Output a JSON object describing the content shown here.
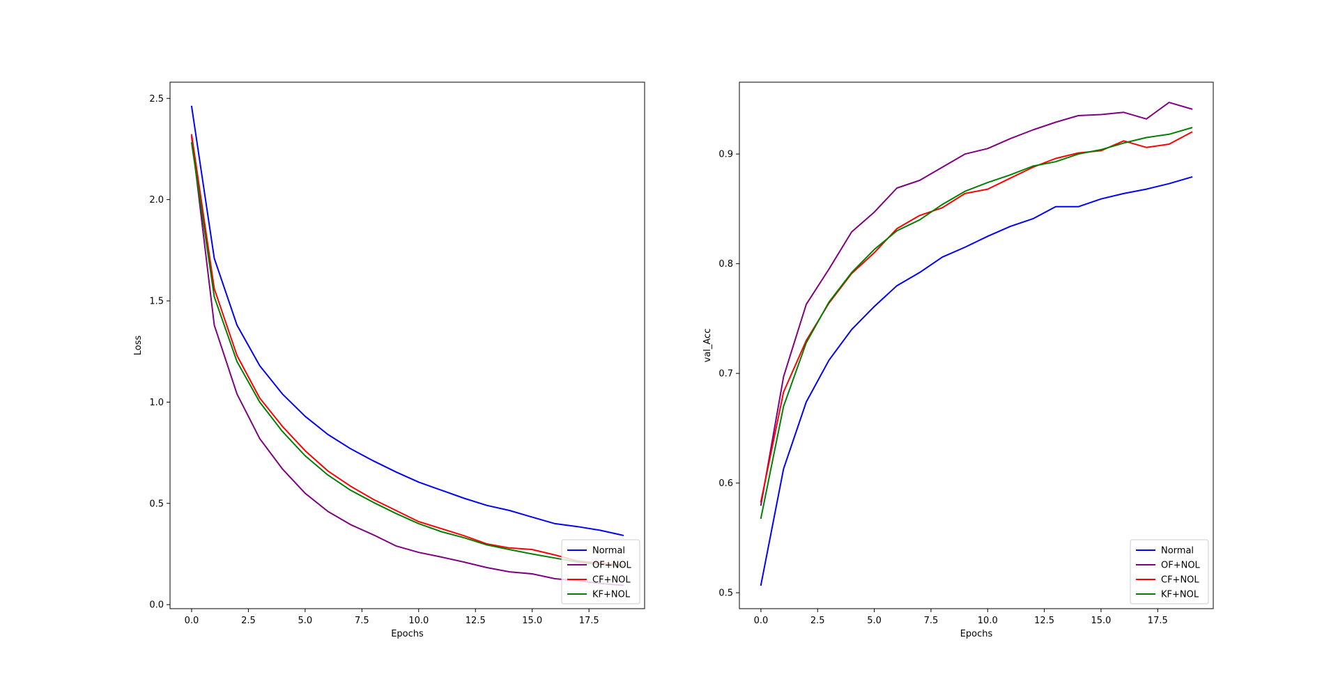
{
  "chart_data": [
    {
      "type": "line",
      "xlabel": "Epochs",
      "ylabel": "Loss",
      "xlim": [
        -0.95,
        19.95
      ],
      "ylim": [
        -0.02,
        2.58
      ],
      "xticks": [
        0.0,
        2.5,
        5.0,
        7.5,
        10.0,
        12.5,
        15.0,
        17.5
      ],
      "xtick_labels": [
        "0.0",
        "2.5",
        "5.0",
        "7.5",
        "10.0",
        "12.5",
        "15.0",
        "17.5"
      ],
      "yticks": [
        0.0,
        0.5,
        1.0,
        1.5,
        2.0,
        2.5
      ],
      "ytick_labels": [
        "0.0",
        "0.5",
        "1.0",
        "1.5",
        "2.0",
        "2.5"
      ],
      "grid": false,
      "legend_position": "lower-right",
      "x": [
        0,
        1,
        2,
        3,
        4,
        5,
        6,
        7,
        8,
        9,
        10,
        11,
        12,
        13,
        14,
        15,
        16,
        17,
        18,
        19
      ],
      "series": [
        {
          "name": "Normal",
          "color": "#0000ff",
          "values": [
            2.46,
            1.71,
            1.38,
            1.18,
            1.04,
            0.93,
            0.84,
            0.77,
            0.71,
            0.655,
            0.605,
            0.565,
            0.525,
            0.49,
            0.465,
            0.432,
            0.4,
            0.385,
            0.367,
            0.342
          ]
        },
        {
          "name": "OF+NOL",
          "color": "#800080",
          "values": [
            2.31,
            1.38,
            1.04,
            0.82,
            0.67,
            0.55,
            0.46,
            0.395,
            0.345,
            0.29,
            0.258,
            0.235,
            0.21,
            0.183,
            0.162,
            0.152,
            0.128,
            0.118,
            0.105,
            0.095
          ]
        },
        {
          "name": "CF+NOL",
          "color": "#ff0000",
          "values": [
            2.32,
            1.56,
            1.23,
            1.02,
            0.88,
            0.76,
            0.66,
            0.585,
            0.52,
            0.465,
            0.41,
            0.375,
            0.34,
            0.3,
            0.28,
            0.272,
            0.245,
            0.215,
            0.205,
            0.195
          ]
        },
        {
          "name": "KF+NOL",
          "color": "#008000",
          "values": [
            2.28,
            1.52,
            1.2,
            1.0,
            0.855,
            0.735,
            0.64,
            0.565,
            0.505,
            0.45,
            0.4,
            0.36,
            0.33,
            0.295,
            0.272,
            0.25,
            0.23,
            0.21,
            0.198,
            0.19
          ]
        }
      ]
    },
    {
      "type": "line",
      "xlabel": "Epochs",
      "ylabel": "val_Acc",
      "xlim": [
        -0.95,
        19.95
      ],
      "ylim": [
        0.4855,
        0.9655
      ],
      "xticks": [
        0.0,
        2.5,
        5.0,
        7.5,
        10.0,
        12.5,
        15.0,
        17.5
      ],
      "xtick_labels": [
        "0.0",
        "2.5",
        "5.0",
        "7.5",
        "10.0",
        "12.5",
        "15.0",
        "17.5"
      ],
      "yticks": [
        0.5,
        0.6,
        0.7,
        0.8,
        0.9
      ],
      "ytick_labels": [
        "0.5",
        "0.6",
        "0.7",
        "0.8",
        "0.9"
      ],
      "grid": false,
      "legend_position": "lower-right",
      "x": [
        0,
        1,
        2,
        3,
        4,
        5,
        6,
        7,
        8,
        9,
        10,
        11,
        12,
        13,
        14,
        15,
        16,
        17,
        18,
        19
      ],
      "series": [
        {
          "name": "Normal",
          "color": "#0000ff",
          "values": [
            0.507,
            0.613,
            0.674,
            0.712,
            0.74,
            0.761,
            0.78,
            0.792,
            0.806,
            0.815,
            0.825,
            0.834,
            0.841,
            0.852,
            0.852,
            0.859,
            0.864,
            0.868,
            0.873,
            0.879
          ]
        },
        {
          "name": "OF+NOL",
          "color": "#800080",
          "values": [
            0.58,
            0.697,
            0.763,
            0.795,
            0.829,
            0.847,
            0.869,
            0.876,
            0.888,
            0.9,
            0.905,
            0.914,
            0.922,
            0.929,
            0.935,
            0.936,
            0.938,
            0.932,
            0.947,
            0.941
          ]
        },
        {
          "name": "CF+NOL",
          "color": "#ff0000",
          "values": [
            0.583,
            0.683,
            0.73,
            0.764,
            0.791,
            0.81,
            0.832,
            0.844,
            0.851,
            0.864,
            0.868,
            0.878,
            0.888,
            0.896,
            0.901,
            0.903,
            0.912,
            0.906,
            0.909,
            0.92
          ]
        },
        {
          "name": "KF+NOL",
          "color": "#008000",
          "values": [
            0.568,
            0.67,
            0.728,
            0.765,
            0.792,
            0.813,
            0.83,
            0.84,
            0.854,
            0.866,
            0.874,
            0.881,
            0.889,
            0.893,
            0.9,
            0.904,
            0.91,
            0.915,
            0.918,
            0.924
          ]
        }
      ]
    }
  ]
}
